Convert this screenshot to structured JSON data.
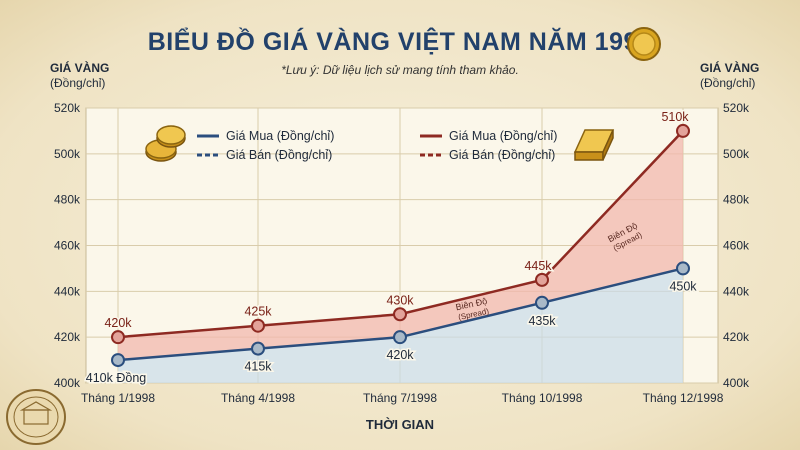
{
  "title": "BIỂU ĐỒ GIÁ VÀNG VIỆT NAM NĂM 1998",
  "subtitle": "*Lưu ý: Dữ liệu lịch sử mang tính tham khảo.",
  "left_axis": {
    "line1": "GIÁ VÀNG",
    "line2": "(Đồng/chỉ)"
  },
  "right_axis": {
    "line1": "GIÁ VÀNG",
    "line2": "(Đồng/chỉ)"
  },
  "legend": {
    "blue_buy": "Giá Mua (Đồng/chỉ)",
    "blue_sell": "Giá Bán (Đồng/chỉ)",
    "red_buy": "Giá Mua (Đồng/chỉ)",
    "red_sell": "Giá Bán (Đồng/chỉ)"
  },
  "spread_label": {
    "line1": "Biên Độ",
    "line2": "(Spread)"
  },
  "colors": {
    "blue": "#2b4e7e",
    "red": "#8e2a22",
    "red_fill": "#f2b8ad",
    "blue_fill": "#c9dcea"
  },
  "chart_data": {
    "type": "line",
    "xlabel": "THỜI GIAN",
    "ylabel": "GIÁ VÀNG (Đồng/chỉ)",
    "categories": [
      "Tháng 1/1998",
      "Tháng 4/1998",
      "Tháng 7/1998",
      "Tháng 10/1998",
      "Tháng 12/1998"
    ],
    "ylim": [
      400,
      520
    ],
    "yticks": [
      "400k",
      "420k",
      "440k",
      "460k",
      "480k",
      "500k",
      "520k"
    ],
    "grid": true,
    "series": [
      {
        "name": "Giá Mua (Đồng/chỉ)",
        "color": "#2b4e7e",
        "values": [
          410,
          415,
          420,
          435,
          450
        ],
        "labels": [
          "410k Đồng",
          "415k",
          "420k",
          "435k",
          "450k"
        ]
      },
      {
        "name": "Giá Mua (Đồng/chỉ)",
        "color": "#8e2a22",
        "values": [
          420,
          425,
          430,
          445,
          510
        ],
        "labels": [
          "420k",
          "425k",
          "430k",
          "445k",
          "510k"
        ]
      }
    ]
  }
}
